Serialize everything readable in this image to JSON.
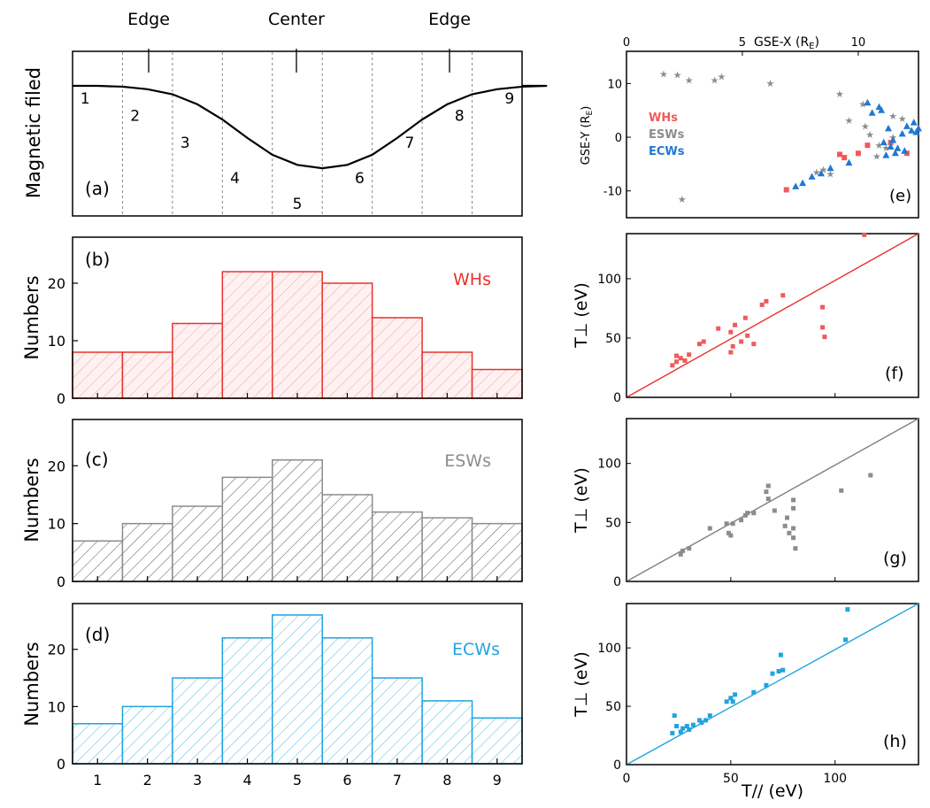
{
  "colors": {
    "whs": "#e8322d",
    "esws": "#8c8c8c",
    "ecws": "#21a3e0",
    "whs_scatter": "#f05a5a",
    "ecws_scatter": "#1f78d4",
    "axis": "#000000"
  },
  "chart_data": [
    {
      "id": "a",
      "type": "line",
      "panel_label": "(a)",
      "ylabel": "Magnetic filed",
      "annotations": [
        "Edge",
        "Center",
        "Edge"
      ],
      "region_labels": [
        "1",
        "2",
        "3",
        "4",
        "5",
        "6",
        "7",
        "8",
        "9"
      ],
      "curve_x": [
        0.5,
        1.0,
        1.5,
        2.0,
        2.5,
        3.0,
        3.5,
        4.0,
        4.5,
        5.0,
        5.5,
        6.0,
        6.5,
        7.0,
        7.5,
        8.0,
        8.5,
        9.0,
        9.5
      ],
      "curve_y": [
        1.0,
        0.99,
        0.96,
        0.9,
        0.78,
        0.6,
        0.38,
        0.18,
        0.06,
        0.02,
        0.06,
        0.18,
        0.38,
        0.6,
        0.78,
        0.9,
        0.96,
        0.99,
        1.0
      ],
      "grid": false
    },
    {
      "id": "b",
      "type": "bar",
      "panel_label": "(b)",
      "legend": "WHs",
      "ylabel": "Numbers",
      "categories": [
        "1",
        "2",
        "3",
        "4",
        "5",
        "6",
        "7",
        "8",
        "9"
      ],
      "values": [
        8,
        8,
        13,
        22,
        22,
        20,
        14,
        8,
        5
      ],
      "ylim": [
        0,
        28
      ],
      "yticks": [
        0,
        10,
        20
      ],
      "legend_position": "top-right"
    },
    {
      "id": "c",
      "type": "bar",
      "panel_label": "(c)",
      "legend": "ESWs",
      "ylabel": "Numbers",
      "categories": [
        "1",
        "2",
        "3",
        "4",
        "5",
        "6",
        "7",
        "8",
        "9"
      ],
      "values": [
        7,
        10,
        13,
        18,
        21,
        15,
        12,
        11,
        10
      ],
      "ylim": [
        0,
        28
      ],
      "yticks": [
        0,
        10,
        20
      ],
      "legend_position": "top-right"
    },
    {
      "id": "d",
      "type": "bar",
      "panel_label": "(d)",
      "legend": "ECWs",
      "ylabel": "Numbers",
      "categories": [
        "1",
        "2",
        "3",
        "4",
        "5",
        "6",
        "7",
        "8",
        "9"
      ],
      "values": [
        7,
        10,
        15,
        22,
        26,
        22,
        15,
        11,
        8
      ],
      "ylim": [
        0,
        28
      ],
      "yticks": [
        0,
        10,
        20
      ],
      "xticks": [
        "1",
        "2",
        "3",
        "4",
        "5",
        "6",
        "7",
        "8",
        "9"
      ],
      "legend_position": "top-right"
    },
    {
      "id": "e",
      "type": "scatter",
      "panel_label": "(e)",
      "xlabel": "GSE-X (R",
      "xlabel_sub": "E",
      "xlabel_close": ")",
      "ylabel": "GSE-Y (R",
      "ylabel_sub": "E",
      "ylabel_close": ")",
      "xlim": [
        0,
        12.6
      ],
      "ylim": [
        -15,
        16
      ],
      "xticks": [
        0,
        5,
        10
      ],
      "yticks": [
        10,
        0,
        -10
      ],
      "legend": [
        "WHs",
        "ESWs",
        "ECWs"
      ],
      "legend_position": "left-center",
      "series": [
        {
          "name": "WHs",
          "marker": "square",
          "points": [
            [
              6.9,
              -9.8
            ],
            [
              9.2,
              -3.2
            ],
            [
              9.4,
              -3.8
            ],
            [
              10.0,
              -3.0
            ],
            [
              10.4,
              -1.5
            ],
            [
              11.4,
              -1.0
            ],
            [
              12.1,
              -3.0
            ]
          ]
        },
        {
          "name": "ESWs",
          "marker": "star",
          "points": [
            [
              1.6,
              11.8
            ],
            [
              2.2,
              11.6
            ],
            [
              2.7,
              10.6
            ],
            [
              3.8,
              10.6
            ],
            [
              4.1,
              11.3
            ],
            [
              6.2,
              10.1
            ],
            [
              2.4,
              -11.5
            ],
            [
              8.2,
              -6.5
            ],
            [
              8.5,
              -6.0
            ],
            [
              8.8,
              -6.8
            ],
            [
              9.2,
              8.1
            ],
            [
              10.2,
              6.2
            ],
            [
              9.6,
              3.1
            ],
            [
              10.3,
              2.1
            ],
            [
              10.5,
              0.5
            ],
            [
              10.9,
              -1.5
            ],
            [
              11.2,
              -2.0
            ],
            [
              11.5,
              0.0
            ],
            [
              11.9,
              3.5
            ],
            [
              11.5,
              4.0
            ],
            [
              10.8,
              -3.5
            ]
          ]
        },
        {
          "name": "ECWs",
          "marker": "triangle",
          "points": [
            [
              7.3,
              -9.2
            ],
            [
              7.6,
              -8.6
            ],
            [
              8.0,
              -7.4
            ],
            [
              8.4,
              -6.8
            ],
            [
              8.8,
              -5.8
            ],
            [
              9.6,
              -4.8
            ],
            [
              10.4,
              6.4
            ],
            [
              10.9,
              5.6
            ],
            [
              10.6,
              4.5
            ],
            [
              11.0,
              5.0
            ],
            [
              11.3,
              1.6
            ],
            [
              11.1,
              -1.0
            ],
            [
              11.4,
              -1.8
            ],
            [
              11.2,
              -3.4
            ],
            [
              11.6,
              -3.0
            ],
            [
              11.9,
              0.6
            ],
            [
              12.1,
              2.0
            ],
            [
              12.4,
              2.7
            ],
            [
              12.6,
              1.6
            ],
            [
              12.0,
              -2.6
            ],
            [
              11.7,
              -2.1
            ],
            [
              12.3,
              1.2
            ],
            [
              12.5,
              0.9
            ],
            [
              11.5,
              -0.6
            ]
          ]
        }
      ]
    },
    {
      "id": "f",
      "type": "scatter",
      "panel_label": "(f)",
      "ylabel": "T⊥ (eV)",
      "xlim": [
        0,
        140
      ],
      "ylim": [
        0,
        138
      ],
      "yticks": [
        0,
        50,
        100
      ],
      "fit_line": [
        [
          0,
          0
        ],
        [
          140,
          138
        ]
      ],
      "points": [
        [
          22,
          27
        ],
        [
          24,
          30
        ],
        [
          24,
          35
        ],
        [
          26,
          33
        ],
        [
          28,
          31
        ],
        [
          30,
          36
        ],
        [
          35,
          45
        ],
        [
          37,
          47
        ],
        [
          44,
          58
        ],
        [
          50,
          38
        ],
        [
          50,
          55
        ],
        [
          51,
          43
        ],
        [
          52,
          61
        ],
        [
          55,
          47
        ],
        [
          57,
          67
        ],
        [
          58,
          52
        ],
        [
          61,
          45
        ],
        [
          65,
          78
        ],
        [
          67,
          81
        ],
        [
          75,
          86
        ],
        [
          94,
          76
        ],
        [
          94,
          59
        ],
        [
          95,
          51
        ],
        [
          114,
          137
        ]
      ]
    },
    {
      "id": "g",
      "type": "scatter",
      "panel_label": "(g)",
      "ylabel": "T⊥ (eV)",
      "xlim": [
        0,
        140
      ],
      "ylim": [
        0,
        138
      ],
      "yticks": [
        0,
        50,
        100
      ],
      "fit_line": [
        [
          0,
          0
        ],
        [
          140,
          138
        ]
      ],
      "points": [
        [
          26,
          23
        ],
        [
          27,
          26
        ],
        [
          30,
          28
        ],
        [
          40,
          45
        ],
        [
          48,
          49
        ],
        [
          49,
          41
        ],
        [
          50,
          39
        ],
        [
          51,
          49
        ],
        [
          55,
          52
        ],
        [
          57,
          56
        ],
        [
          58,
          58
        ],
        [
          61,
          58
        ],
        [
          67,
          76
        ],
        [
          68,
          70
        ],
        [
          68,
          81
        ],
        [
          71,
          60
        ],
        [
          76,
          47
        ],
        [
          77,
          54
        ],
        [
          78,
          41
        ],
        [
          80,
          37
        ],
        [
          80,
          45
        ],
        [
          80,
          62
        ],
        [
          80,
          69
        ],
        [
          81,
          28
        ],
        [
          103,
          77
        ],
        [
          117,
          90
        ]
      ]
    },
    {
      "id": "h",
      "type": "scatter",
      "panel_label": "(h)",
      "ylabel": "T⊥ (eV)",
      "xlabel": "T// (eV)",
      "xlim": [
        0,
        140
      ],
      "ylim": [
        0,
        138
      ],
      "xticks": [
        0,
        50,
        100
      ],
      "yticks": [
        0,
        50,
        100
      ],
      "fit_line": [
        [
          0,
          0
        ],
        [
          140,
          138
        ]
      ],
      "points": [
        [
          22,
          27
        ],
        [
          23,
          42
        ],
        [
          24,
          33
        ],
        [
          26,
          28
        ],
        [
          27,
          31
        ],
        [
          29,
          33
        ],
        [
          30,
          30
        ],
        [
          32,
          34
        ],
        [
          35,
          38
        ],
        [
          36,
          36
        ],
        [
          38,
          38
        ],
        [
          40,
          42
        ],
        [
          48,
          54
        ],
        [
          50,
          57
        ],
        [
          51,
          54
        ],
        [
          52,
          60
        ],
        [
          61,
          62
        ],
        [
          67,
          68
        ],
        [
          70,
          78
        ],
        [
          73,
          80
        ],
        [
          74,
          94
        ],
        [
          75,
          81
        ],
        [
          105,
          107
        ],
        [
          106,
          133
        ]
      ]
    }
  ]
}
